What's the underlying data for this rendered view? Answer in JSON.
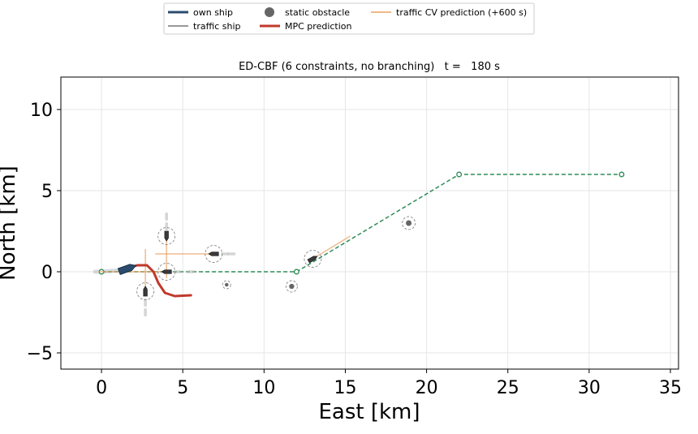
{
  "chart_data": {
    "type": "scatter",
    "title": "ED-CBF (6 constraints, no branching)   t =   180 s",
    "xlabel": "East [km]",
    "ylabel": "North [km]",
    "xlim": [
      -2.5,
      35.5
    ],
    "ylim": [
      -6,
      12
    ],
    "xticks": [
      0,
      5,
      10,
      15,
      20,
      25,
      30,
      35
    ],
    "yticks": [
      -5,
      0,
      5,
      10
    ],
    "xtick_labels": [
      "0",
      "5",
      "10",
      "15",
      "20",
      "25",
      "30",
      "35"
    ],
    "ytick_labels": [
      "−5",
      "0",
      "5",
      "10"
    ],
    "grid": true,
    "legend_position": "top-center",
    "legend": [
      {
        "label": "own ship",
        "kind": "line",
        "color": "#2b4c6f"
      },
      {
        "label": "traffic ship",
        "kind": "line",
        "color": "#777777"
      },
      {
        "label": "static obstacle",
        "kind": "marker",
        "color": "#666666"
      },
      {
        "label": "MPC prediction",
        "kind": "line",
        "color": "#c0392b"
      },
      {
        "label": "traffic CV prediction (+600 s)",
        "kind": "line",
        "color": "#e8a060"
      }
    ],
    "waypoints": [
      [
        0,
        0
      ],
      [
        12,
        0
      ],
      [
        22,
        6
      ],
      [
        32,
        6
      ]
    ],
    "own_ship": {
      "position": [
        1.6,
        0.2
      ],
      "heading_deg": 70,
      "wake": [
        [
          -0.4,
          0.0
        ],
        [
          0.0,
          0.0
        ],
        [
          0.6,
          0.05
        ],
        [
          1.2,
          0.1
        ]
      ]
    },
    "mpc_prediction": [
      [
        1.6,
        0.2
      ],
      [
        2.2,
        0.4
      ],
      [
        2.8,
        0.4
      ],
      [
        3.2,
        0.0
      ],
      [
        3.5,
        -0.7
      ],
      [
        3.9,
        -1.3
      ],
      [
        4.5,
        -1.5
      ],
      [
        5.5,
        -1.45
      ]
    ],
    "traffic_ships": [
      {
        "position": [
          2.7,
          -1.2
        ],
        "heading_deg": 0,
        "cv_end": [
          2.7,
          1.4
        ],
        "past": [
          [
            2.7,
            -1.9
          ],
          [
            2.7,
            -2.5
          ]
        ]
      },
      {
        "position": [
          4.0,
          0.0
        ],
        "heading_deg": 270,
        "cv_end": [
          -0.2,
          0.0
        ],
        "past": [
          [
            4.7,
            0.0
          ],
          [
            5.5,
            0.0
          ]
        ]
      },
      {
        "position": [
          4.0,
          2.2
        ],
        "heading_deg": 180,
        "cv_end": [
          4.0,
          -0.4
        ],
        "past": [
          [
            4.0,
            2.8
          ],
          [
            4.0,
            3.4
          ]
        ]
      },
      {
        "position": [
          6.9,
          1.1
        ],
        "heading_deg": 270,
        "cv_end": [
          3.3,
          1.1
        ],
        "past": [
          [
            7.6,
            1.1
          ],
          [
            8.0,
            1.1
          ]
        ]
      },
      {
        "position": [
          13.0,
          0.8
        ],
        "heading_deg": 60,
        "cv_end": [
          15.3,
          2.2
        ],
        "past": []
      }
    ],
    "static_obstacles": [
      {
        "position": [
          7.7,
          -0.8
        ],
        "radius": 0.25
      },
      {
        "position": [
          11.7,
          -0.9
        ],
        "radius": 0.35
      },
      {
        "position": [
          18.9,
          3.0
        ],
        "radius": 0.4
      }
    ]
  }
}
